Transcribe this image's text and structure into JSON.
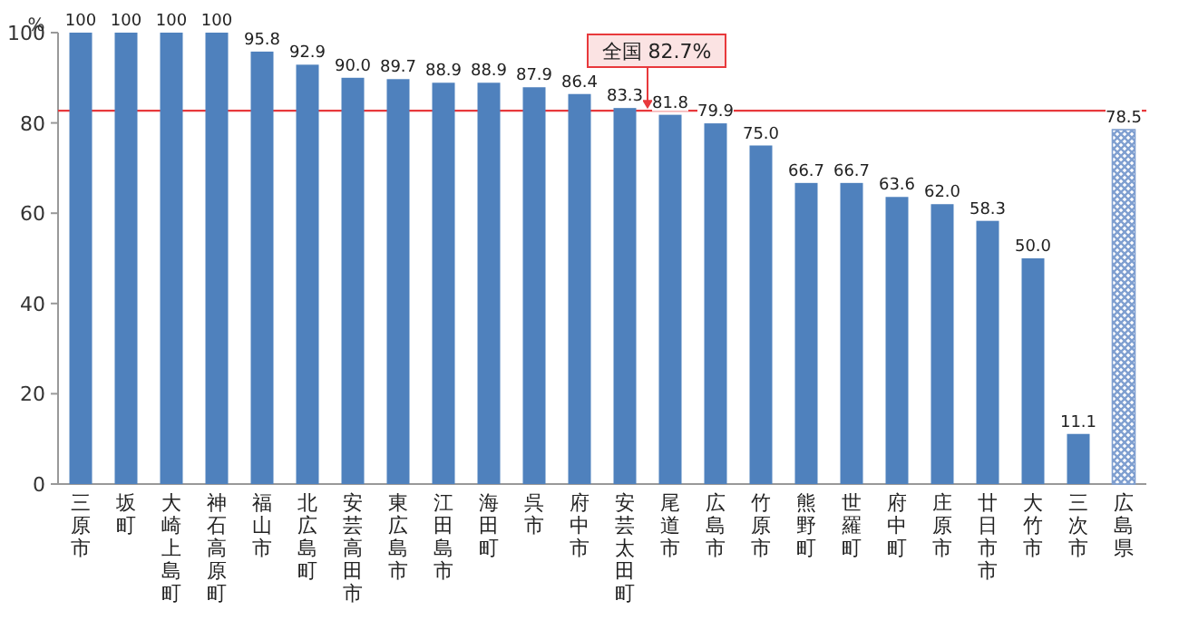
{
  "chart_data": {
    "type": "bar",
    "ylabel": "%",
    "categories": [
      "三原市",
      "坂町",
      "大崎上島町",
      "神石高原町",
      "福山市",
      "北広島町",
      "安芸高田市",
      "東広島市",
      "江田島市",
      "海田町",
      "呉市",
      "府中市",
      "安芸太田町",
      "尾道市",
      "広島市",
      "竹原市",
      "熊野町",
      "世羅町",
      "府中町",
      "庄原市",
      "廿日市市",
      "大竹市",
      "三次市",
      "広島県"
    ],
    "values": [
      100,
      100,
      100,
      100,
      95.8,
      92.9,
      90.0,
      89.7,
      88.9,
      88.9,
      87.9,
      86.4,
      83.3,
      81.8,
      79.9,
      75.0,
      66.7,
      66.7,
      63.6,
      62.0,
      58.3,
      50.0,
      11.1,
      78.5
    ],
    "value_labels": [
      "100",
      "100",
      "100",
      "100",
      "95.8",
      "92.9",
      "90.0",
      "89.7",
      "88.9",
      "88.9",
      "87.9",
      "86.4",
      "83.3",
      "81.8",
      "79.9",
      "75.0",
      "66.7",
      "66.7",
      "63.6",
      "62.0",
      "58.3",
      "50.0",
      "11.1",
      "78.5"
    ],
    "colors": [
      "#4f81bd",
      "#4f81bd",
      "#4f81bd",
      "#4f81bd",
      "#4f81bd",
      "#4f81bd",
      "#4f81bd",
      "#4f81bd",
      "#4f81bd",
      "#4f81bd",
      "#4f81bd",
      "#4f81bd",
      "#4f81bd",
      "#4f81bd",
      "#4f81bd",
      "#4f81bd",
      "#4f81bd",
      "#4f81bd",
      "#4f81bd",
      "#4f81bd",
      "#4f81bd",
      "#4f81bd",
      "#4f81bd",
      "#7f9fd0"
    ],
    "ylim": [
      0,
      100
    ],
    "yticks": [
      0,
      20,
      40,
      60,
      80,
      100
    ],
    "ref_lines": [
      {
        "axis": "y",
        "value": 82.7,
        "label": "全国 82.7%",
        "color": "#e8393c"
      }
    ],
    "grid": false
  }
}
